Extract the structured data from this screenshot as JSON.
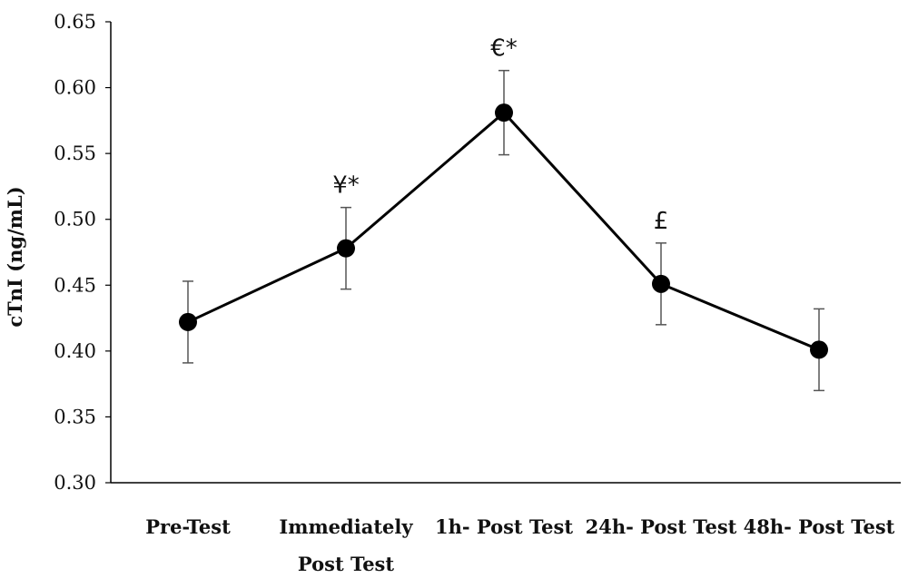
{
  "chart_data": {
    "type": "line",
    "title": "",
    "xlabel": "",
    "ylabel": "cTnI (ng/mL)",
    "ylim": [
      0.3,
      0.65
    ],
    "yticks": [
      "0.30",
      "0.35",
      "0.40",
      "0.45",
      "0.50",
      "0.55",
      "0.60",
      "0.65"
    ],
    "categories": [
      [
        "Pre-Test"
      ],
      [
        "Immediately",
        "Post Test"
      ],
      [
        "1h- Post Test"
      ],
      [
        "24h- Post Test"
      ],
      [
        "48h- Post Test"
      ]
    ],
    "series": [
      {
        "values": [
          0.422,
          0.478,
          0.581,
          0.451,
          0.401
        ],
        "error": [
          0.031,
          0.031,
          0.032,
          0.031,
          0.031
        ]
      }
    ],
    "annotations": [
      "",
      "¥*",
      "€*",
      "£",
      ""
    ],
    "grid": false,
    "legend": "none",
    "colors": {
      "line": "#000000",
      "marker": "#000000",
      "errorbar": "#555555",
      "axis": "#000000"
    }
  }
}
